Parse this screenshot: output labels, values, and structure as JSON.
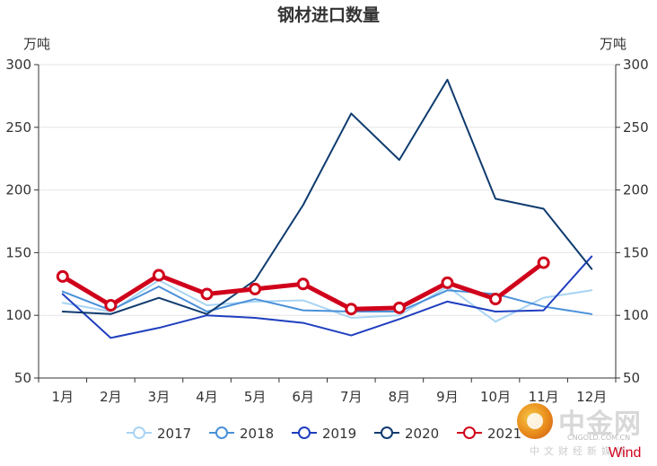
{
  "chart_data": {
    "type": "line",
    "title": "钢材进口数量",
    "ylabel_left": "万吨",
    "ylabel_right": "万吨",
    "ylim": [
      50,
      300
    ],
    "yticks": [
      50,
      100,
      150,
      200,
      250,
      300
    ],
    "categories": [
      "1月",
      "2月",
      "3月",
      "4月",
      "5月",
      "6月",
      "7月",
      "8月",
      "9月",
      "10月",
      "11月",
      "12月"
    ],
    "grid": true,
    "legend_position": "bottom",
    "series": [
      {
        "name": "2017",
        "color": "#a8d4f5",
        "width": 2,
        "markers": false,
        "emphasis": false,
        "values": [
          110,
          103,
          128,
          108,
          111,
          112,
          98,
          100,
          123,
          95,
          114,
          120
        ]
      },
      {
        "name": "2018",
        "color": "#4a90d9",
        "width": 2,
        "markers": false,
        "emphasis": false,
        "values": [
          119,
          104,
          123,
          103,
          113,
          104,
          103,
          103,
          120,
          117,
          107,
          101
        ]
      },
      {
        "name": "2019",
        "color": "#1f3fbf",
        "width": 2,
        "markers": false,
        "emphasis": false,
        "values": [
          117,
          82,
          90,
          100,
          98,
          94,
          84,
          97,
          111,
          103,
          104,
          147
        ]
      },
      {
        "name": "2020",
        "color": "#0f3b6f",
        "width": 2,
        "markers": false,
        "emphasis": false,
        "values": [
          103,
          101,
          114,
          101,
          128,
          188,
          261,
          224,
          288,
          193,
          185,
          137
        ]
      },
      {
        "name": "2021",
        "color": "#d0021b",
        "width": 5,
        "markers": true,
        "emphasis": true,
        "values": [
          131,
          108,
          132,
          117,
          121,
          125,
          105,
          106,
          126,
          113,
          142,
          null
        ]
      }
    ]
  },
  "watermark": {
    "brand": "中金网",
    "url": "CNGOLD.COM.CN",
    "tagline": "中文财经新媒体",
    "source": "Wind"
  }
}
